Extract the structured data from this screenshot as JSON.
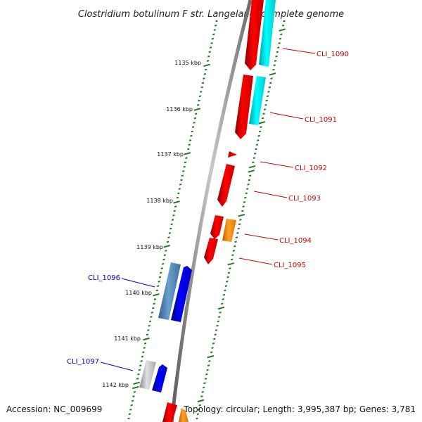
{
  "title": "Clostridium botulinum F str. Langeland, complete genome",
  "footer": {
    "accession": "Accession: NC_009699",
    "summary": "Topology: circular; Length: 3,995,387 bp; Genes: 3,781"
  },
  "colors": {
    "backbone": "#8a8a8a",
    "tick": "#1f7a1f",
    "forward_label": "#cc0000",
    "reverse_label": "#0000cc",
    "cds_forward": "#ff0000",
    "cds_forward_alt": "#ff8c00",
    "rna_forward": "#00e5ee",
    "cds_reverse": "#0000ff",
    "cds_reverse_alt": "#4682b4",
    "cds_reverse_grey": "#bdbdbd"
  },
  "kbp_labels": [
    "1135 kbp",
    "1136 kbp",
    "1137 kbp",
    "1138 kbp",
    "1139 kbp",
    "1140 kbp",
    "1141 kbp",
    "1142 kbp"
  ],
  "forward_gene_labels": [
    "CLI_1090",
    "CLI_1091",
    "CLI_1092",
    "CLI_1093",
    "CLI_1094",
    "CLI_1095"
  ],
  "reverse_gene_labels": [
    "CLI_1096",
    "CLI_1097"
  ]
}
